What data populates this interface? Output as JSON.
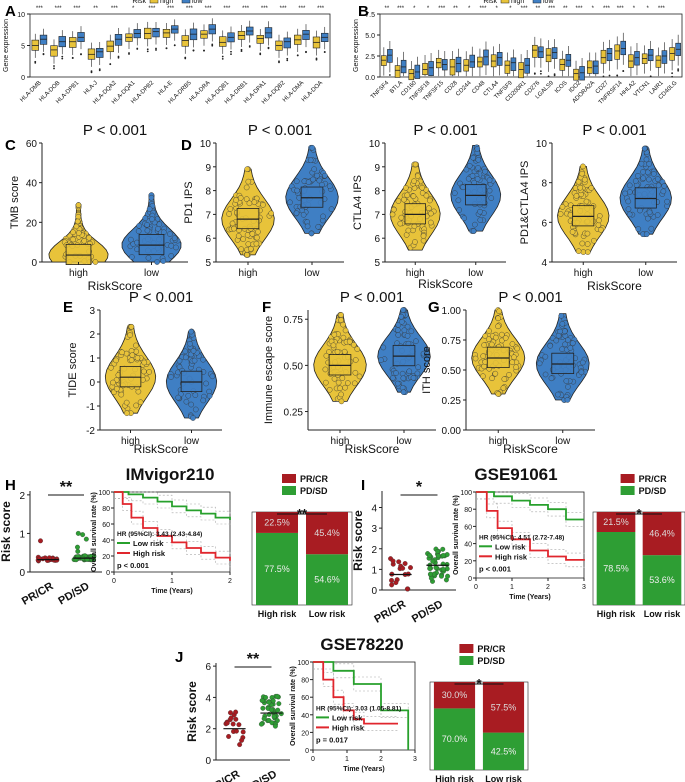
{
  "colors": {
    "high": "#e8c33a",
    "low": "#3f7fc4",
    "pr": "#a81c22",
    "pd": "#2e9e34",
    "line_low": "#27a02c",
    "line_high": "#e0262d"
  },
  "chart_data": [
    {
      "panel": "A",
      "type": "box",
      "ylabel": "Gene expression",
      "ylim": [
        0,
        10
      ],
      "yticks": [
        "0",
        "5",
        "10"
      ],
      "legend_title": "Risk",
      "legend": [
        "high",
        "low"
      ],
      "categories": [
        "HLA-DMB",
        "HLA-DOB",
        "HLA-DPB1",
        "HLA-J",
        "HLA-DQA2",
        "HLA-DQA1",
        "HLA-DPB2",
        "HLA-E",
        "HLA-DRB5",
        "HLA-DRA",
        "HLA-DQB1",
        "HLA-DRB1",
        "HLA-DPA1",
        "HLA-DQB2",
        "HLA-DMA",
        "HLA-DOA"
      ],
      "sig": [
        "***",
        "***",
        "***",
        "**",
        "***",
        "*",
        "***",
        "***",
        "***",
        "***",
        "***",
        "***",
        "***",
        "***",
        "***",
        "***"
      ],
      "high_median": [
        5.0,
        4.3,
        5.6,
        3.6,
        4.9,
        6.3,
        6.9,
        7.0,
        5.8,
        6.8,
        5.5,
        6.6,
        6.1,
        5.0,
        5.9,
        5.5
      ],
      "low_median": [
        6.0,
        5.6,
        6.3,
        4.0,
        6.0,
        6.9,
        7.2,
        7.6,
        6.8,
        7.6,
        6.3,
        7.3,
        7.0,
        5.6,
        6.8,
        6.3
      ]
    },
    {
      "panel": "B",
      "type": "box",
      "ylabel": "Gene expression",
      "ylim": [
        0,
        7.5
      ],
      "yticks": [
        "0.0",
        "2.5",
        "5.0",
        "7.5"
      ],
      "legend_title": "Risk",
      "legend": [
        "high",
        "low"
      ],
      "categories": [
        "TNFSF4",
        "BTLA",
        "CD160",
        "TNFSF18",
        "TNFSF15",
        "CD28",
        "CD244",
        "CD48",
        "CTLA4",
        "TNFSF9",
        "CD200R1",
        "CD276",
        "LGALS9",
        "ICOS",
        "IDO2",
        "ADORA2A",
        "CD27",
        "TNFRSF14",
        "HHLA2",
        "VTCN1",
        "LAIR1",
        "CD40LG"
      ],
      "sig": [
        "**",
        "***",
        "*",
        "*",
        "***",
        "**",
        "*",
        "***",
        "*",
        "*",
        "***",
        "**",
        "***",
        "**",
        "***",
        "*",
        "***",
        "***",
        "*",
        "*",
        "***",
        ""
      ],
      "high_median": [
        2.0,
        0.8,
        0.4,
        0.9,
        1.7,
        1.2,
        1.4,
        1.8,
        1.9,
        1.4,
        0.9,
        3.2,
        2.6,
        1.5,
        0.4,
        1.1,
        2.3,
        3.1,
        1.9,
        2.2,
        2.0,
        2.8
      ],
      "low_median": [
        2.6,
        1.2,
        0.6,
        1.1,
        1.5,
        1.6,
        1.8,
        2.4,
        2.3,
        1.7,
        1.4,
        3.0,
        2.9,
        2.0,
        0.5,
        1.3,
        2.8,
        3.4,
        2.3,
        2.6,
        2.5,
        3.3
      ]
    },
    {
      "panel": "C",
      "type": "violin-box",
      "title": "P < 0.001",
      "ylabel": "TMB score",
      "xlabel": "RiskScore",
      "categories": [
        "high",
        "low"
      ],
      "ylim": [
        0,
        60
      ],
      "yticks": [
        "0",
        "20",
        "40",
        "60"
      ],
      "medians": [
        3.5,
        8.5
      ]
    },
    {
      "panel": "D1",
      "type": "violin-box",
      "title": "P < 0.001",
      "ylabel": "PD1 IPS",
      "xlabel": "",
      "categories": [
        "high",
        "low"
      ],
      "ylim": [
        5,
        10
      ],
      "yticks": [
        "5",
        "6",
        "7",
        "8",
        "9",
        "10"
      ],
      "medians": [
        6.8,
        7.7
      ]
    },
    {
      "panel": "D2",
      "type": "violin-box",
      "title": "P < 0.001",
      "ylabel": "CTLA4 IPS",
      "xlabel": "RiskScore",
      "categories": [
        "high",
        "low"
      ],
      "ylim": [
        5,
        10
      ],
      "yticks": [
        "5",
        "6",
        "7",
        "8",
        "9",
        "10"
      ],
      "medians": [
        7.0,
        7.8
      ]
    },
    {
      "panel": "D3",
      "type": "violin-box",
      "title": "P < 0.001",
      "ylabel": "PD1&CTLA4 IPS",
      "xlabel": "RiskScore",
      "categories": [
        "high",
        "low"
      ],
      "ylim": [
        4,
        10
      ],
      "yticks": [
        "4",
        "6",
        "8",
        "10"
      ],
      "medians": [
        6.3,
        7.2
      ]
    },
    {
      "panel": "E",
      "type": "violin-box",
      "title": "P < 0.001",
      "ylabel": "TIDE score",
      "xlabel": "RiskScore",
      "categories": [
        "high",
        "low"
      ],
      "ylim": [
        -2,
        3
      ],
      "yticks": [
        "-2",
        "-1",
        "0",
        "1",
        "2",
        "3"
      ],
      "medians": [
        0.2,
        0.0
      ]
    },
    {
      "panel": "F",
      "type": "violin-box",
      "title": "P < 0.001",
      "ylabel": "Immune escape score",
      "xlabel": "RiskScore",
      "categories": [
        "high",
        "low"
      ],
      "ylim": [
        0.15,
        0.8
      ],
      "yticks": [
        "0.25",
        "0.50",
        "0.75"
      ],
      "medians": [
        0.5,
        0.55
      ]
    },
    {
      "panel": "G",
      "type": "violin-box",
      "title": "P < 0.001",
      "ylabel": "ITH score",
      "xlabel": "RiskScore",
      "categories": [
        "high",
        "low"
      ],
      "ylim": [
        0,
        1.0
      ],
      "yticks": [
        "0.00",
        "0.25",
        "0.50",
        "0.75",
        "1.00"
      ],
      "medians": [
        0.6,
        0.55
      ]
    },
    {
      "panel": "H",
      "title": "IMvigor210",
      "dot": {
        "ylabel": "Risk score",
        "categories": [
          "PR/CR",
          "PD/SD"
        ],
        "sig": "**",
        "ylim": [
          0,
          2.1
        ],
        "yticks": [
          "0",
          "1",
          "2"
        ],
        "means": [
          0.32,
          0.36
        ]
      },
      "km": {
        "ylabel": "Overall survival rate (%)",
        "xlabel": "Time (Years)",
        "xlim": [
          0,
          2
        ],
        "xticks": [
          "0",
          "1",
          "2"
        ],
        "yticks": [
          "0",
          "20",
          "40",
          "60",
          "80",
          "100"
        ],
        "hr": "HR (95%CI): 3.43 (2.43-4.84)",
        "p": "p < 0.001",
        "legend": [
          "Low risk",
          "High risk"
        ],
        "low": [
          [
            0,
            100
          ],
          [
            0.25,
            97
          ],
          [
            0.5,
            93
          ],
          [
            0.75,
            88
          ],
          [
            1.0,
            82
          ],
          [
            1.25,
            77
          ],
          [
            1.5,
            73
          ],
          [
            1.75,
            68
          ],
          [
            2.0,
            65
          ]
        ],
        "high": [
          [
            0,
            100
          ],
          [
            0.15,
            85
          ],
          [
            0.3,
            68
          ],
          [
            0.5,
            55
          ],
          [
            0.75,
            45
          ],
          [
            1.0,
            37
          ],
          [
            1.25,
            30
          ],
          [
            1.5,
            24
          ],
          [
            1.75,
            18
          ],
          [
            2.0,
            14
          ]
        ]
      },
      "bar": {
        "legend": [
          "PR/CR",
          "PD/SD"
        ],
        "sig": "**",
        "categories": [
          "High risk",
          "Low risk"
        ],
        "pr": [
          22.5,
          45.4
        ],
        "pd": [
          77.5,
          54.6
        ],
        "pr_labels": [
          "22.5%",
          "45.4%"
        ],
        "pd_labels": [
          "77.5%",
          "54.6%"
        ]
      }
    },
    {
      "panel": "I",
      "title": "GSE91061",
      "dot": {
        "ylabel": "Risk score",
        "categories": [
          "PR/CR",
          "PD/SD"
        ],
        "sig": "*",
        "ylim": [
          0,
          4.8
        ],
        "yticks": [
          "0",
          "1",
          "2",
          "3",
          "4"
        ],
        "means": [
          0.75,
          1.2
        ]
      },
      "km": {
        "ylabel": "Overall survival rate (%)",
        "xlabel": "Time (Years)",
        "xlim": [
          0,
          3
        ],
        "xticks": [
          "0",
          "1",
          "2",
          "3"
        ],
        "yticks": [
          "0",
          "20",
          "40",
          "60",
          "80",
          "100"
        ],
        "hr": "HR (95%CI): 4.51 (2.72-7.48)",
        "p": "p < 0.001",
        "legend": [
          "Low risk",
          "High risk"
        ],
        "low": [
          [
            0,
            100
          ],
          [
            0.5,
            95
          ],
          [
            1.0,
            90
          ],
          [
            1.5,
            85
          ],
          [
            2.0,
            80
          ],
          [
            2.5,
            68
          ],
          [
            3.0,
            68
          ]
        ],
        "high": [
          [
            0,
            100
          ],
          [
            0.3,
            78
          ],
          [
            0.6,
            58
          ],
          [
            1.0,
            45
          ],
          [
            1.5,
            32
          ],
          [
            2.0,
            25
          ],
          [
            2.5,
            21
          ],
          [
            3.0,
            20
          ]
        ]
      },
      "bar": {
        "legend": [
          "PR/CR",
          "PD/SD"
        ],
        "sig": "*",
        "categories": [
          "High risk",
          "Low risk"
        ],
        "pr": [
          21.5,
          46.4
        ],
        "pd": [
          78.5,
          53.6
        ],
        "pr_labels": [
          "21.5%",
          "46.4%"
        ],
        "pd_labels": [
          "78.5%",
          "53.6%"
        ]
      }
    },
    {
      "panel": "J",
      "title": "GSE78220",
      "dot": {
        "ylabel": "Risk score",
        "categories": [
          "PR/CR",
          "PD/SD"
        ],
        "sig": "**",
        "ylim": [
          0,
          6.2
        ],
        "yticks": [
          "0",
          "2",
          "4",
          "6"
        ],
        "means": [
          2.0,
          3.0
        ]
      },
      "km": {
        "ylabel": "Overall survival rate (%)",
        "xlabel": "Time (Years)",
        "xlim": [
          0,
          3
        ],
        "xticks": [
          "0",
          "1",
          "2",
          "3"
        ],
        "yticks": [
          "0",
          "20",
          "40",
          "60",
          "80",
          "100"
        ],
        "hr": "HR (95%CI): 3.03 (1.05-8.81)",
        "p": "p = 0.017",
        "legend": [
          "Low risk",
          "High risk"
        ],
        "low": [
          [
            0,
            100
          ],
          [
            0.6,
            90
          ],
          [
            1.2,
            75
          ],
          [
            1.9,
            75
          ],
          [
            2.0,
            45
          ],
          [
            2.7,
            45
          ],
          [
            2.8,
            0
          ]
        ],
        "high": [
          [
            0,
            100
          ],
          [
            0.3,
            80
          ],
          [
            0.6,
            60
          ],
          [
            0.9,
            45
          ],
          [
            1.2,
            35
          ],
          [
            1.5,
            30
          ],
          [
            2.5,
            30
          ]
        ]
      },
      "bar": {
        "legend": [
          "PR/CR",
          "PD/SD"
        ],
        "sig": "*",
        "categories": [
          "High risk",
          "Low risk"
        ],
        "pr": [
          30.0,
          57.5
        ],
        "pd": [
          70.0,
          42.5
        ],
        "pr_labels": [
          "30.0%",
          "57.5%"
        ],
        "pd_labels": [
          "70.0%",
          "42.5%"
        ]
      }
    }
  ]
}
